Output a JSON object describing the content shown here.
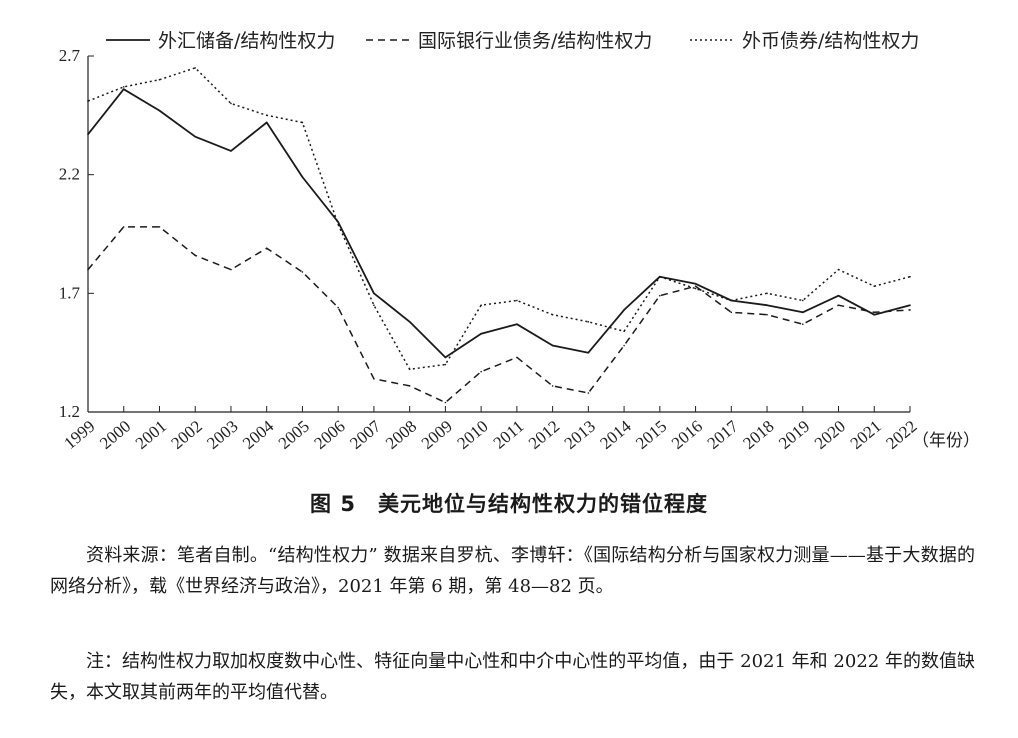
{
  "chart_data": {
    "type": "line",
    "title": "",
    "xlabel": "",
    "ylabel": "",
    "x_unit_label": "（年份）",
    "categories": [
      "1999",
      "2000",
      "2001",
      "2002",
      "2003",
      "2004",
      "2005",
      "2006",
      "2007",
      "2008",
      "2009",
      "2010",
      "2011",
      "2012",
      "2013",
      "2014",
      "2015",
      "2016",
      "2017",
      "2018",
      "2019",
      "2020",
      "2021",
      "2022"
    ],
    "ylim": [
      1.2,
      2.7
    ],
    "yticks": [
      "1.2",
      "1.7",
      "2.2",
      "2.7"
    ],
    "grid": false,
    "legend_position": "top",
    "series": [
      {
        "name": "外汇储备/结构性权力",
        "style": "solid",
        "values": [
          2.37,
          2.56,
          2.47,
          2.36,
          2.3,
          2.42,
          2.19,
          2.0,
          1.7,
          1.58,
          1.43,
          1.53,
          1.57,
          1.48,
          1.45,
          1.63,
          1.77,
          1.74,
          1.67,
          1.65,
          1.62,
          1.69,
          1.61,
          1.65
        ]
      },
      {
        "name": "国际银行业债务/结构性权力",
        "style": "dashed",
        "values": [
          1.8,
          1.98,
          1.98,
          1.86,
          1.8,
          1.89,
          1.79,
          1.64,
          1.34,
          1.31,
          1.24,
          1.37,
          1.43,
          1.31,
          1.28,
          1.48,
          1.69,
          1.73,
          1.62,
          1.61,
          1.57,
          1.65,
          1.62,
          1.63
        ]
      },
      {
        "name": "外币债券/结构性权力",
        "style": "dotted",
        "values": [
          2.51,
          2.57,
          2.6,
          2.65,
          2.5,
          2.45,
          2.42,
          1.99,
          1.65,
          1.38,
          1.4,
          1.65,
          1.67,
          1.61,
          1.58,
          1.54,
          1.77,
          1.72,
          1.67,
          1.7,
          1.67,
          1.8,
          1.73,
          1.77
        ]
      }
    ]
  },
  "figure": {
    "caption": "图 5　美元地位与结构性权力的错位程度"
  },
  "notes": {
    "source": "资料来源：笔者自制。“结构性权力” 数据来自罗杭、李博轩：《国际结构分析与国家权力测量——基于大数据的网络分析》，载《世界经济与政治》，2021 年第 6 期，第 48—82 页。",
    "remark": "注：结构性权力取加权度数中心性、特征向量中心性和中介中心性的平均值，由于 2021 年和 2022 年的数值缺失，本文取其前两年的平均值代替。"
  }
}
